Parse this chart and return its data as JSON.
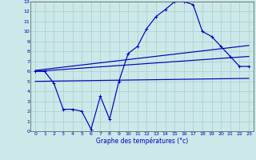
{
  "bg_color": "#cce8e8",
  "grid_color": "#aacccc",
  "line_color": "#0000bb",
  "xlabel": "Graphe des températures (°c)",
  "ylabel_ticks": [
    0,
    1,
    2,
    3,
    4,
    5,
    6,
    7,
    8,
    9,
    10,
    11,
    12,
    13
  ],
  "xlabel_ticks": [
    0,
    1,
    2,
    3,
    4,
    5,
    6,
    7,
    8,
    9,
    10,
    11,
    12,
    13,
    14,
    15,
    16,
    17,
    18,
    19,
    20,
    21,
    22,
    23
  ],
  "xlim": [
    -0.5,
    23.5
  ],
  "ylim": [
    0,
    13
  ],
  "line1_x": [
    0,
    1,
    2,
    3,
    4,
    5,
    6,
    7,
    8,
    9,
    10,
    11,
    12,
    13,
    14,
    15,
    16,
    17,
    18,
    19,
    20,
    21,
    22,
    23
  ],
  "line1_y": [
    6.0,
    6.0,
    4.8,
    2.2,
    2.2,
    2.0,
    0.2,
    3.5,
    1.2,
    5.0,
    7.8,
    8.5,
    10.3,
    11.5,
    12.2,
    13.0,
    13.0,
    12.7,
    10.0,
    9.5,
    8.5,
    7.5,
    6.5,
    6.5
  ],
  "line2_x": [
    0,
    23
  ],
  "line2_y": [
    6.1,
    8.6
  ],
  "line3_x": [
    0,
    23
  ],
  "line3_y": [
    6.0,
    7.5
  ],
  "line4_x": [
    0,
    23
  ],
  "line4_y": [
    5.0,
    5.3
  ]
}
